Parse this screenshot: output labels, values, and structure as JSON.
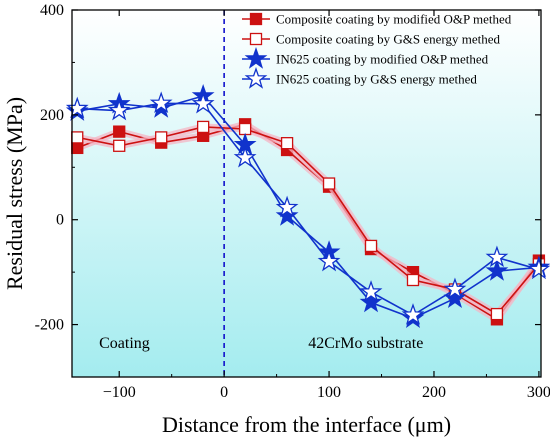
{
  "chart_data": {
    "type": "line",
    "xlabel": "Distance from the interface (μm)",
    "ylabel": "Residual stress (MPa)",
    "xlim": [
      -145,
      302
    ],
    "ylim": [
      -300,
      400
    ],
    "x_ticks": [
      -100,
      0,
      100,
      200,
      300
    ],
    "y_ticks": [
      -200,
      0,
      200,
      400
    ],
    "y_tick_labels": [
      "-200",
      "0",
      "200",
      "400"
    ],
    "x_tick_labels": [
      "−100",
      "0",
      "100",
      "200",
      "300"
    ],
    "interface_line_x": 0,
    "grid": false,
    "legend_position": "top-right",
    "background": {
      "top_color": "#ffffff",
      "bottom_color": "#a4ecef"
    },
    "annotations": [
      {
        "text": "Coating",
        "x": -95,
        "y": -235
      },
      {
        "text": "42CrMo substrate",
        "x": 135,
        "y": -235
      }
    ],
    "series": [
      {
        "name": "Composite coating by modified O&P methed",
        "color": "#cc1111",
        "marker": "square-filled",
        "x": [
          -140,
          -100,
          -60,
          -20,
          20,
          60,
          100,
          140,
          180,
          220,
          260,
          300
        ],
        "y": [
          137,
          168,
          147,
          160,
          182,
          133,
          63,
          -56,
          -100,
          -141,
          -190,
          -78
        ]
      },
      {
        "name": "Composite coating by G&S energy methed",
        "color": "#cc1111",
        "marker": "square-open",
        "x": [
          -140,
          -100,
          -60,
          -20,
          20,
          60,
          100,
          140,
          180,
          220,
          260,
          300
        ],
        "y": [
          157,
          141,
          157,
          177,
          173,
          146,
          69,
          -50,
          -115,
          -133,
          -180,
          -85
        ]
      },
      {
        "name": "IN625 coating by modified O&P methed",
        "color": "#1133cc",
        "marker": "star-filled",
        "x": [
          -140,
          -100,
          -60,
          -20,
          20,
          60,
          100,
          140,
          180,
          220,
          260,
          300
        ],
        "y": [
          207,
          221,
          213,
          236,
          143,
          7,
          -62,
          -158,
          -188,
          -150,
          -98,
          -91
        ]
      },
      {
        "name": "IN625 coating by G&S energy methed",
        "color": "#1133cc",
        "marker": "star-open",
        "x": [
          -140,
          -100,
          -60,
          -20,
          20,
          60,
          100,
          140,
          180,
          220,
          260,
          300
        ],
        "y": [
          212,
          208,
          222,
          221,
          118,
          23,
          -80,
          -138,
          -182,
          -133,
          -72,
          -95
        ]
      }
    ]
  }
}
